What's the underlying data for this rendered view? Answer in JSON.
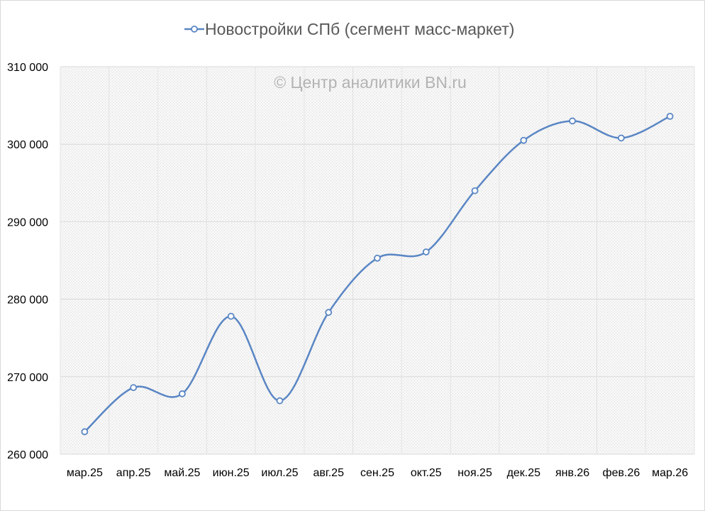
{
  "chart_data": {
    "type": "line",
    "title": "",
    "xlabel": "",
    "ylabel": "",
    "watermark": "© Центр аналитики BN.ru",
    "categories": [
      "мар.25",
      "апр.25",
      "май.25",
      "июн.25",
      "июл.25",
      "авг.25",
      "сен.25",
      "окт.25",
      "ноя.25",
      "дек.25",
      "янв.26",
      "фев.26",
      "мар.26"
    ],
    "series": [
      {
        "name": "Новостройки СПб (сегмент масс-маркет)",
        "color": "#5a86c4",
        "values": [
          262900,
          268600,
          267800,
          277800,
          266900,
          278300,
          285300,
          286100,
          294000,
          300500,
          303000,
          300800,
          303600
        ]
      }
    ],
    "ylim": [
      260000,
      310000
    ],
    "yticks": [
      260000,
      270000,
      280000,
      290000,
      300000,
      310000
    ],
    "ytick_labels": [
      "260 000",
      "270 000",
      "280 000",
      "290 000",
      "300 000",
      "310 000"
    ],
    "grid": true,
    "smooth": true,
    "markers": "hollow-circle",
    "legend_position": "top-center"
  }
}
